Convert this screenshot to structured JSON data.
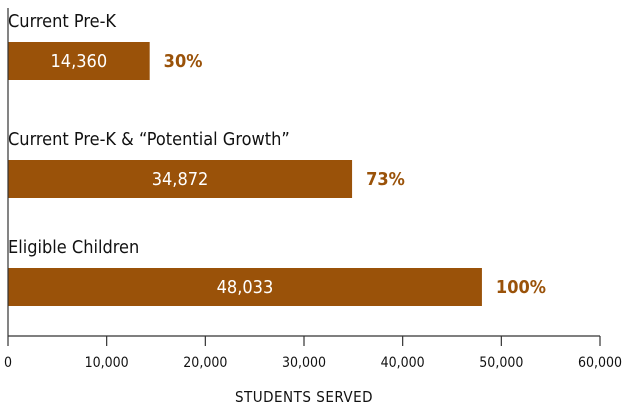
{
  "chart_data": {
    "type": "bar",
    "orientation": "horizontal",
    "categories": [
      "Current Pre-K",
      "Current Pre-K & “Potential Growth”",
      "Eligible Children"
    ],
    "values": [
      14360,
      34872,
      48033
    ],
    "value_labels": [
      "14,360",
      "34,872",
      "48,033"
    ],
    "percent_labels": [
      "30%",
      "73%",
      "100%"
    ],
    "xlabel": "STUDENTS SERVED",
    "xlim": [
      0,
      60000
    ],
    "x_ticks": [
      0,
      10000,
      20000,
      30000,
      40000,
      50000,
      60000
    ],
    "x_tick_labels": [
      "0",
      "10,000",
      "20,000",
      "30,000",
      "40,000",
      "50,000",
      "60,000"
    ],
    "grid": false,
    "bar_color": "#9a5209",
    "percent_color": "#9a5209"
  }
}
